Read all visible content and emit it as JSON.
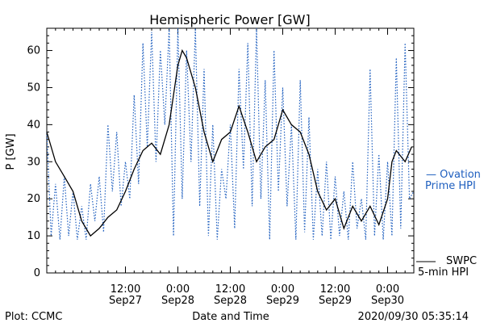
{
  "chart_data": {
    "type": "line",
    "title": "Hemispheric Power [GW]",
    "xlabel": "Date and Time",
    "ylabel": "P [GW]",
    "ylim": [
      0,
      66
    ],
    "yticks": [
      0,
      10,
      20,
      30,
      40,
      50,
      60
    ],
    "xlim": [
      "2020-09-26T18:00",
      "2020-09-30T06:00"
    ],
    "xticks": [
      {
        "t": "2020-09-27T12:00",
        "line1": "12:00",
        "line2": "Sep27"
      },
      {
        "t": "2020-09-28T00:00",
        "line1": "0:00",
        "line2": "Sep28"
      },
      {
        "t": "2020-09-28T12:00",
        "line1": "12:00",
        "line2": "Sep28"
      },
      {
        "t": "2020-09-29T00:00",
        "line1": "0:00",
        "line2": "Sep29"
      },
      {
        "t": "2020-09-29T12:00",
        "line1": "12:00",
        "line2": "Sep29"
      },
      {
        "t": "2020-09-30T00:00",
        "line1": "0:00",
        "line2": "Sep30"
      }
    ],
    "grid": false,
    "series": [
      {
        "name": "SWPC 5-min HPI",
        "color": "#000000",
        "style": "solid",
        "points": [
          [
            "2020-09-26T18:00",
            38
          ],
          [
            "2020-09-26T20:00",
            30
          ],
          [
            "2020-09-26T22:00",
            26
          ],
          [
            "2020-09-27T00:00",
            22
          ],
          [
            "2020-09-27T02:00",
            14
          ],
          [
            "2020-09-27T04:00",
            10
          ],
          [
            "2020-09-27T06:00",
            12
          ],
          [
            "2020-09-27T08:00",
            15
          ],
          [
            "2020-09-27T10:00",
            17
          ],
          [
            "2020-09-27T12:00",
            22
          ],
          [
            "2020-09-27T14:00",
            28
          ],
          [
            "2020-09-27T16:00",
            33
          ],
          [
            "2020-09-27T18:00",
            35
          ],
          [
            "2020-09-27T20:00",
            32
          ],
          [
            "2020-09-27T22:00",
            40
          ],
          [
            "2020-09-28T00:00",
            56
          ],
          [
            "2020-09-28T01:00",
            60
          ],
          [
            "2020-09-28T02:00",
            58
          ],
          [
            "2020-09-28T04:00",
            50
          ],
          [
            "2020-09-28T06:00",
            38
          ],
          [
            "2020-09-28T08:00",
            30
          ],
          [
            "2020-09-28T10:00",
            36
          ],
          [
            "2020-09-28T12:00",
            38
          ],
          [
            "2020-09-28T14:00",
            45
          ],
          [
            "2020-09-28T16:00",
            38
          ],
          [
            "2020-09-28T18:00",
            30
          ],
          [
            "2020-09-28T20:00",
            34
          ],
          [
            "2020-09-28T22:00",
            36
          ],
          [
            "2020-09-29T00:00",
            44
          ],
          [
            "2020-09-29T02:00",
            40
          ],
          [
            "2020-09-29T04:00",
            38
          ],
          [
            "2020-09-29T06:00",
            32
          ],
          [
            "2020-09-29T08:00",
            22
          ],
          [
            "2020-09-29T10:00",
            17
          ],
          [
            "2020-09-29T12:00",
            20
          ],
          [
            "2020-09-29T14:00",
            12
          ],
          [
            "2020-09-29T16:00",
            18
          ],
          [
            "2020-09-29T18:00",
            14
          ],
          [
            "2020-09-29T20:00",
            18
          ],
          [
            "2020-09-29T22:00",
            13
          ],
          [
            "2020-09-30T00:00",
            20
          ],
          [
            "2020-09-30T01:00",
            30
          ],
          [
            "2020-09-30T02:00",
            33
          ],
          [
            "2020-09-30T04:00",
            30
          ],
          [
            "2020-09-30T05:30",
            34
          ]
        ]
      },
      {
        "name": "Ovation Prime HPI",
        "color": "#1f5fbf",
        "style": "dotted",
        "points": [
          [
            "2020-09-26T18:00",
            38
          ],
          [
            "2020-09-26T19:00",
            10
          ],
          [
            "2020-09-26T20:00",
            24
          ],
          [
            "2020-09-26T21:00",
            9
          ],
          [
            "2020-09-26T22:00",
            26
          ],
          [
            "2020-09-26T23:00",
            10
          ],
          [
            "2020-09-27T00:00",
            22
          ],
          [
            "2020-09-27T01:00",
            9
          ],
          [
            "2020-09-27T02:00",
            18
          ],
          [
            "2020-09-27T03:00",
            9
          ],
          [
            "2020-09-27T04:00",
            24
          ],
          [
            "2020-09-27T05:00",
            14
          ],
          [
            "2020-09-27T06:00",
            26
          ],
          [
            "2020-09-27T07:00",
            11
          ],
          [
            "2020-09-27T08:00",
            40
          ],
          [
            "2020-09-27T09:00",
            22
          ],
          [
            "2020-09-27T10:00",
            38
          ],
          [
            "2020-09-27T11:00",
            18
          ],
          [
            "2020-09-27T12:00",
            30
          ],
          [
            "2020-09-27T13:00",
            20
          ],
          [
            "2020-09-27T14:00",
            48
          ],
          [
            "2020-09-27T15:00",
            24
          ],
          [
            "2020-09-27T16:00",
            62
          ],
          [
            "2020-09-27T17:00",
            34
          ],
          [
            "2020-09-27T18:00",
            65
          ],
          [
            "2020-09-27T19:00",
            30
          ],
          [
            "2020-09-27T20:00",
            60
          ],
          [
            "2020-09-27T21:00",
            40
          ],
          [
            "2020-09-27T22:00",
            66
          ],
          [
            "2020-09-27T23:00",
            10
          ],
          [
            "2020-09-28T00:00",
            66
          ],
          [
            "2020-09-28T01:00",
            20
          ],
          [
            "2020-09-28T02:00",
            60
          ],
          [
            "2020-09-28T03:00",
            30
          ],
          [
            "2020-09-28T04:00",
            66
          ],
          [
            "2020-09-28T05:00",
            18
          ],
          [
            "2020-09-28T06:00",
            55
          ],
          [
            "2020-09-28T07:00",
            10
          ],
          [
            "2020-09-28T08:00",
            40
          ],
          [
            "2020-09-28T09:00",
            9
          ],
          [
            "2020-09-28T10:00",
            28
          ],
          [
            "2020-09-28T11:00",
            20
          ],
          [
            "2020-09-28T12:00",
            40
          ],
          [
            "2020-09-28T13:00",
            12
          ],
          [
            "2020-09-28T14:00",
            55
          ],
          [
            "2020-09-28T15:00",
            28
          ],
          [
            "2020-09-28T16:00",
            62
          ],
          [
            "2020-09-28T17:00",
            18
          ],
          [
            "2020-09-28T18:00",
            66
          ],
          [
            "2020-09-28T19:00",
            20
          ],
          [
            "2020-09-28T20:00",
            52
          ],
          [
            "2020-09-28T21:00",
            9
          ],
          [
            "2020-09-28T22:00",
            60
          ],
          [
            "2020-09-28T23:00",
            22
          ],
          [
            "2020-09-29T00:00",
            50
          ],
          [
            "2020-09-29T01:00",
            18
          ],
          [
            "2020-09-29T02:00",
            40
          ],
          [
            "2020-09-29T03:00",
            9
          ],
          [
            "2020-09-29T04:00",
            52
          ],
          [
            "2020-09-29T05:00",
            11
          ],
          [
            "2020-09-29T06:00",
            42
          ],
          [
            "2020-09-29T07:00",
            9
          ],
          [
            "2020-09-29T08:00",
            28
          ],
          [
            "2020-09-29T09:00",
            10
          ],
          [
            "2020-09-29T10:00",
            30
          ],
          [
            "2020-09-29T11:00",
            9
          ],
          [
            "2020-09-29T12:00",
            26
          ],
          [
            "2020-09-29T13:00",
            10
          ],
          [
            "2020-09-29T14:00",
            22
          ],
          [
            "2020-09-29T15:00",
            9
          ],
          [
            "2020-09-29T16:00",
            30
          ],
          [
            "2020-09-29T17:00",
            12
          ],
          [
            "2020-09-29T18:00",
            20
          ],
          [
            "2020-09-29T19:00",
            9
          ],
          [
            "2020-09-29T20:00",
            55
          ],
          [
            "2020-09-29T21:00",
            10
          ],
          [
            "2020-09-29T22:00",
            32
          ],
          [
            "2020-09-29T23:00",
            9
          ],
          [
            "2020-09-30T00:00",
            30
          ],
          [
            "2020-09-30T01:00",
            10
          ],
          [
            "2020-09-30T02:00",
            58
          ],
          [
            "2020-09-30T03:00",
            12
          ],
          [
            "2020-09-30T04:00",
            62
          ],
          [
            "2020-09-30T05:00",
            20
          ],
          [
            "2020-09-30T06:00",
            22
          ]
        ]
      }
    ]
  },
  "footer": {
    "left": "Plot: CCMC",
    "center": "Date and Time",
    "right": "2020/09/30 05:35:14"
  },
  "legend": {
    "ovation_line1": "— Ovation",
    "ovation_line2": "Prime HPI",
    "swpc_line1": "SWPC",
    "swpc_line2": "5-min HPI"
  }
}
